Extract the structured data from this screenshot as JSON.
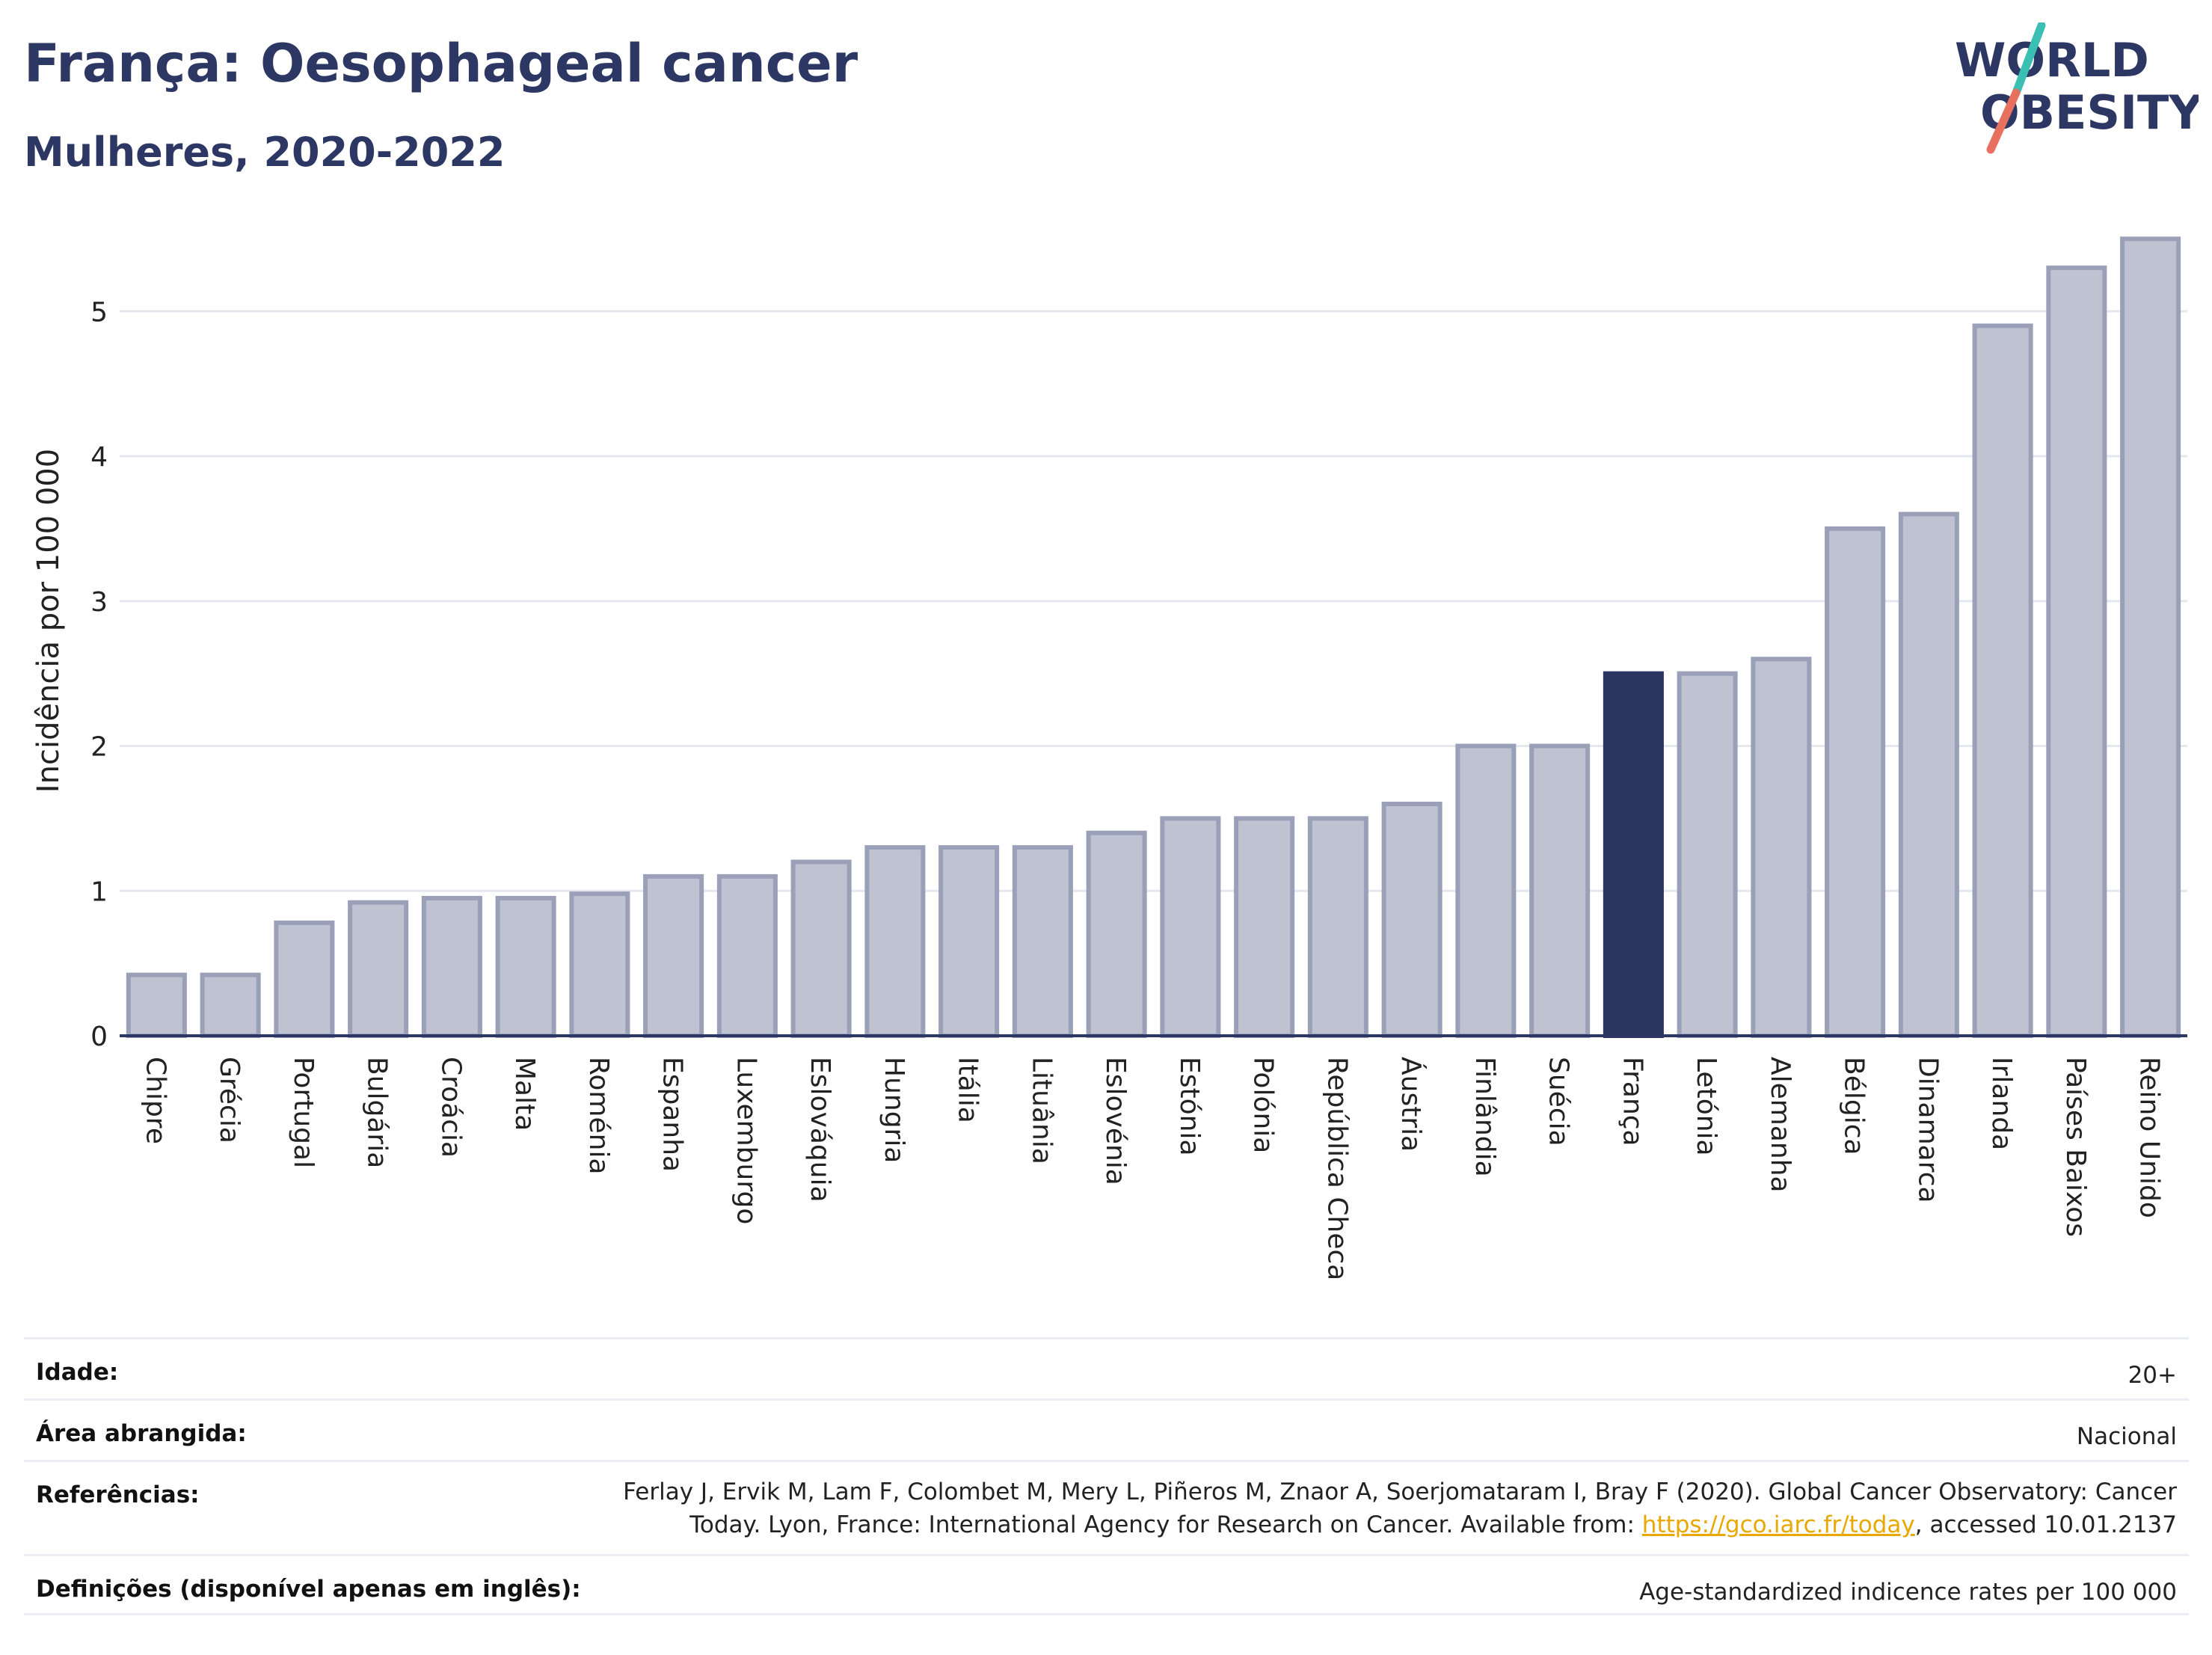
{
  "header": {
    "title": "França: Oesophageal cancer",
    "subtitle": "Mulheres, 2020-2022"
  },
  "logo": {
    "line1": "WORLD",
    "line2": "OBESITY",
    "colors": {
      "text": "#2c3764",
      "slash_top": "#3bbfb2",
      "slash_bottom": "#e8705f"
    }
  },
  "chart_data": {
    "type": "bar",
    "title": "França: Oesophageal cancer",
    "subtitle": "Mulheres, 2020-2022",
    "xlabel": "",
    "ylabel": "Incidência por 100 000",
    "ylim": [
      0,
      5.6
    ],
    "yticks": [
      0,
      1,
      2,
      3,
      4,
      5
    ],
    "grid": true,
    "highlight": "França",
    "colors": {
      "bar": "#bfc2d0",
      "bar_border": "#9aa0b8",
      "highlight": "#2b3560",
      "axis": "#2c3764",
      "grid": "#e6e7ee"
    },
    "categories": [
      "Chipre",
      "Grécia",
      "Portugal",
      "Bulgária",
      "Croácia",
      "Malta",
      "Roménia",
      "Espanha",
      "Luxemburgo",
      "Eslováquia",
      "Hungria",
      "Itália",
      "Lituânia",
      "Eslovénia",
      "Estónia",
      "Polónia",
      "República Checa",
      "Áustria",
      "Finlândia",
      "Suécia",
      "França",
      "Letónia",
      "Alemanha",
      "Bélgica",
      "Dinamarca",
      "Irlanda",
      "Países Baixos",
      "Reino Unido"
    ],
    "values": [
      0.42,
      0.42,
      0.78,
      0.92,
      0.95,
      0.95,
      0.98,
      1.1,
      1.1,
      1.2,
      1.3,
      1.3,
      1.3,
      1.4,
      1.5,
      1.5,
      1.5,
      1.6,
      2.0,
      2.0,
      2.5,
      2.5,
      2.6,
      3.5,
      3.6,
      4.9,
      5.3,
      5.5
    ]
  },
  "info": {
    "rows": [
      {
        "label": "Idade:",
        "value": "20+"
      },
      {
        "label": "Área abrangida:",
        "value": "Nacional"
      },
      {
        "label": "Referências:",
        "value_prefix": "Ferlay J, Ervik M, Lam F, Colombet M, Mery L, Piñeros M, Znaor A, Soerjomataram I, Bray F (2020). Global Cancer Observatory: Cancer Today. Lyon, France: International Agency for Research on Cancer. Available from: ",
        "link": "https://gco.iarc.fr/today",
        "value_suffix": ", accessed 10.01.2137"
      },
      {
        "label": "Definições (disponível apenas em inglês):",
        "value": "Age-standardized indicence rates per 100 000"
      }
    ]
  }
}
